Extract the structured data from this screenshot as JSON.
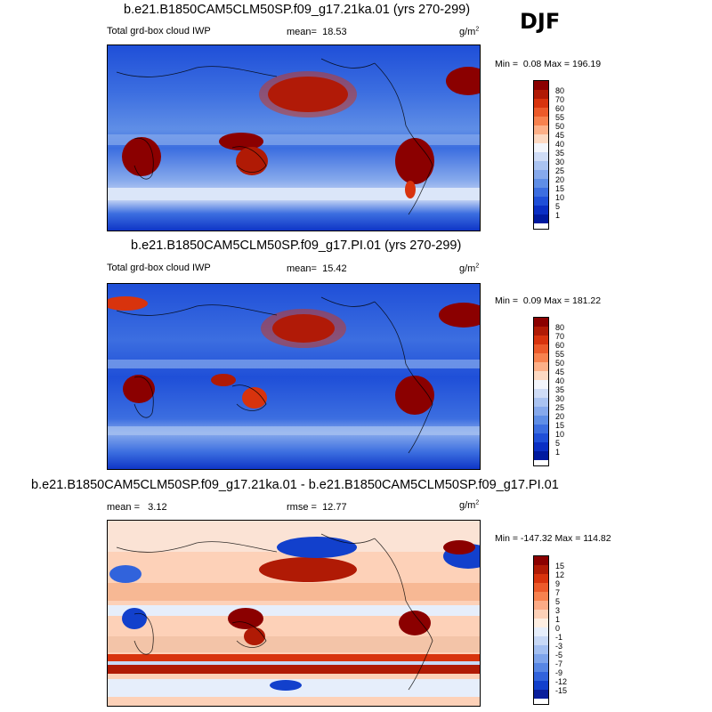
{
  "season": "DJF",
  "panels": [
    {
      "title": "b.e21.B1850CAM5CLM50SP.f09_g17.21ka.01 (yrs 270-299)",
      "variable": "Total grd-box cloud IWP",
      "mean_label": "mean=",
      "mean_value": "18.53",
      "units": "g/m",
      "units_exp": "2",
      "min_label": "Min =",
      "min_value": "0.08",
      "max_label": "Max =",
      "max_value": "196.19",
      "colorbar": {
        "labels": [
          "80",
          "70",
          "60",
          "55",
          "50",
          "45",
          "40",
          "35",
          "30",
          "25",
          "20",
          "15",
          "10",
          "5",
          "1"
        ],
        "colors": [
          "#8b0000",
          "#b01a05",
          "#d8330d",
          "#ec5a2a",
          "#f7824f",
          "#fdb088",
          "#fdd9c2",
          "#f3f5fb",
          "#cfdcf6",
          "#aac3f1",
          "#86a9ec",
          "#5f8ee6",
          "#3c6ee0",
          "#1f4fd8",
          "#0a2fc4",
          "#001a9f"
        ]
      }
    },
    {
      "title": "b.e21.B1850CAM5CLM50SP.f09_g17.PI.01 (yrs 270-299)",
      "variable": "Total grd-box cloud IWP",
      "mean_label": "mean=",
      "mean_value": "15.42",
      "units": "g/m",
      "units_exp": "2",
      "min_label": "Min =",
      "min_value": "0.09",
      "max_label": "Max =",
      "max_value": "181.22",
      "colorbar": {
        "labels": [
          "80",
          "70",
          "60",
          "55",
          "50",
          "45",
          "40",
          "35",
          "30",
          "25",
          "20",
          "15",
          "10",
          "5",
          "1"
        ],
        "colors": [
          "#8b0000",
          "#b01a05",
          "#d8330d",
          "#ec5a2a",
          "#f7824f",
          "#fdb088",
          "#fdd9c2",
          "#f3f5fb",
          "#cfdcf6",
          "#aac3f1",
          "#86a9ec",
          "#5f8ee6",
          "#3c6ee0",
          "#1f4fd8",
          "#0a2fc4",
          "#001a9f"
        ]
      }
    },
    {
      "title": "b.e21.B1850CAM5CLM50SP.f09_g17.21ka.01 - b.e21.B1850CAM5CLM50SP.f09_g17.PI.01",
      "mean_label": "mean =",
      "mean_value": "3.12",
      "rmse_label": "rmse =",
      "rmse_value": "12.77",
      "units": "g/m",
      "units_exp": "2",
      "min_label": "Min =",
      "min_value": "-147.32",
      "max_label": "Max =",
      "max_value": "114.82",
      "colorbar": {
        "labels": [
          "15",
          "12",
          "9",
          "7",
          "5",
          "3",
          "1",
          "0",
          "-1",
          "-3",
          "-5",
          "-7",
          "-9",
          "-12",
          "-15"
        ],
        "colors": [
          "#8b0000",
          "#b01a05",
          "#d8330d",
          "#ec5a2a",
          "#f7824f",
          "#fcab86",
          "#fdd1b8",
          "#fdeee2",
          "#e6eefb",
          "#c7d8f6",
          "#a3bff1",
          "#7ea4eb",
          "#5786e4",
          "#3163dc",
          "#1240cc",
          "#0a1f9c"
        ]
      }
    }
  ]
}
